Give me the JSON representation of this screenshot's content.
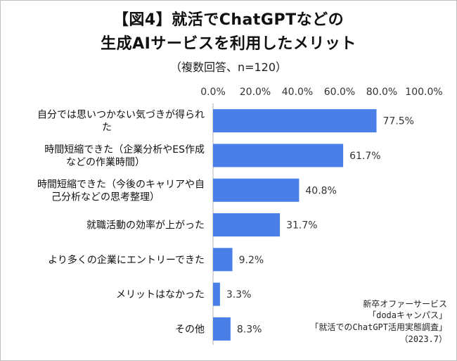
{
  "title_line1": "【図4】就活でChatGPTなどの",
  "title_line2": "生成AIサービスを利用したメリット",
  "subtitle": "（複数回答、n=120）",
  "chart_data": {
    "type": "bar",
    "orientation": "horizontal",
    "categories": [
      [
        "自分では思いつかない気づきが得られ",
        "た"
      ],
      [
        "時間短縮できた（企業分析やES作成",
        "などの作業時間）"
      ],
      [
        "時間短縮できた（今後のキャリアや自",
        "己分析などの思考整理）"
      ],
      [
        "就職活動の効率が上がった"
      ],
      [
        "より多くの企業にエントリーできた"
      ],
      [
        "メリットはなかった"
      ],
      [
        "その他"
      ]
    ],
    "values": [
      77.5,
      61.7,
      40.8,
      31.7,
      9.2,
      3.3,
      8.3
    ],
    "value_labels": [
      "77.5%",
      "61.7%",
      "40.8%",
      "31.7%",
      "9.2%",
      "3.3%",
      "8.3%"
    ],
    "xlim": [
      0,
      100
    ],
    "ticks": [
      "0.0%",
      "20.0%",
      "40.0%",
      "60.0%",
      "80.0%",
      "100.0%"
    ],
    "tick_values": [
      0,
      20,
      40,
      60,
      80,
      100
    ],
    "bar_color": "#4a7fe8",
    "grid": false,
    "axis_position": "top"
  },
  "source_note": {
    "line1": "新卒オファーサービス",
    "line2": "「dodaキャンパス」",
    "line3": "「就活でのChatGPT活用実態調査」",
    "line4": "（2023.7）"
  }
}
